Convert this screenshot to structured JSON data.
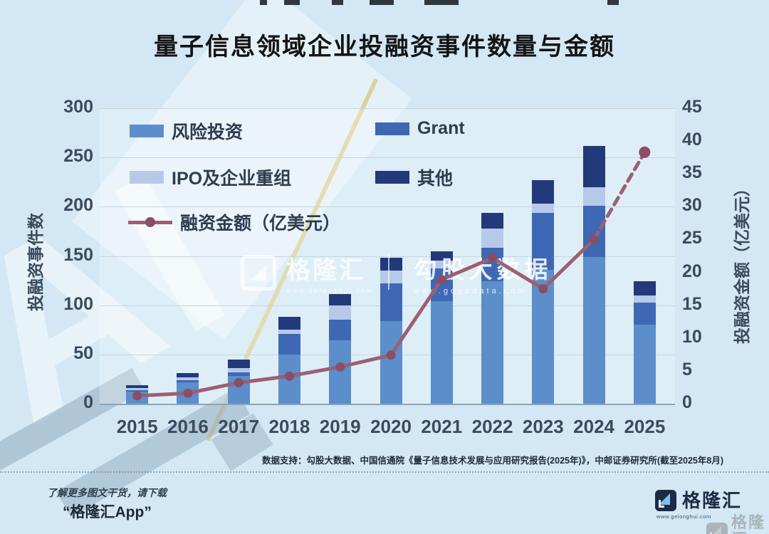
{
  "chart_data": {
    "type": "bar",
    "stacked": true,
    "title": "量子信息领域企业投融资事件数量与金额",
    "categories": [
      "2015",
      "2016",
      "2017",
      "2018",
      "2019",
      "2020",
      "2021",
      "2022",
      "2023",
      "2024",
      "2025"
    ],
    "series": [
      {
        "name": "风险投资",
        "color": "#5b8ecb",
        "values": [
          12,
          22,
          28,
          50,
          64,
          84,
          104,
          124,
          136,
          149,
          80
        ]
      },
      {
        "name": "Grant",
        "color": "#3e68b4",
        "values": [
          2,
          2,
          4,
          21,
          21,
          38,
          33,
          34,
          58,
          52,
          23
        ]
      },
      {
        "name": "IPO及企业重组",
        "color": "#b6c9e8",
        "values": [
          2,
          3,
          4,
          4,
          15,
          13,
          8,
          20,
          9,
          19,
          7
        ]
      },
      {
        "name": "其他",
        "color": "#22397a",
        "values": [
          3,
          4,
          9,
          13,
          11,
          13,
          10,
          16,
          24,
          42,
          14
        ]
      }
    ],
    "bar_totals": [
      19,
      31,
      45,
      88,
      111,
      148,
      155,
      194,
      227,
      262,
      124
    ],
    "line_series": {
      "name": "融资金额（亿美元）",
      "color": "#9c5f73",
      "dot_color": "#8a4e64",
      "values": [
        1.2,
        1.6,
        3.2,
        4.2,
        5.6,
        7.4,
        18.9,
        22.2,
        17.5,
        25.0,
        38.3
      ],
      "dashed_from_index": 9
    },
    "left_axis": {
      "label": "投融资事件数",
      "min": 0,
      "max": 300,
      "step": 50
    },
    "right_axis": {
      "label": "投融资金额（亿美元）",
      "min": 0,
      "max": 45,
      "step": 5
    },
    "grid": true,
    "legend_position": "inside-top-left"
  },
  "footnote": {
    "text": "数据支持：勾股大数据、中国信通院《量子信息技术发展与应用研究报告(2025年)》，中邮证券研究所(截至2025年8月)"
  },
  "promo": {
    "line1": "了解更多图文干货，请下载",
    "line2": "“格隆汇App”"
  },
  "logo": {
    "brand": "格隆汇",
    "url": "www.gelonghui.com"
  },
  "center_watermark": {
    "brand": "格隆汇",
    "brand_url": "www.gelonghui.com",
    "partner": "勾股大数据",
    "partner_url": "www.gogodata.com"
  },
  "watermark": {
    "big_text": "AI"
  }
}
